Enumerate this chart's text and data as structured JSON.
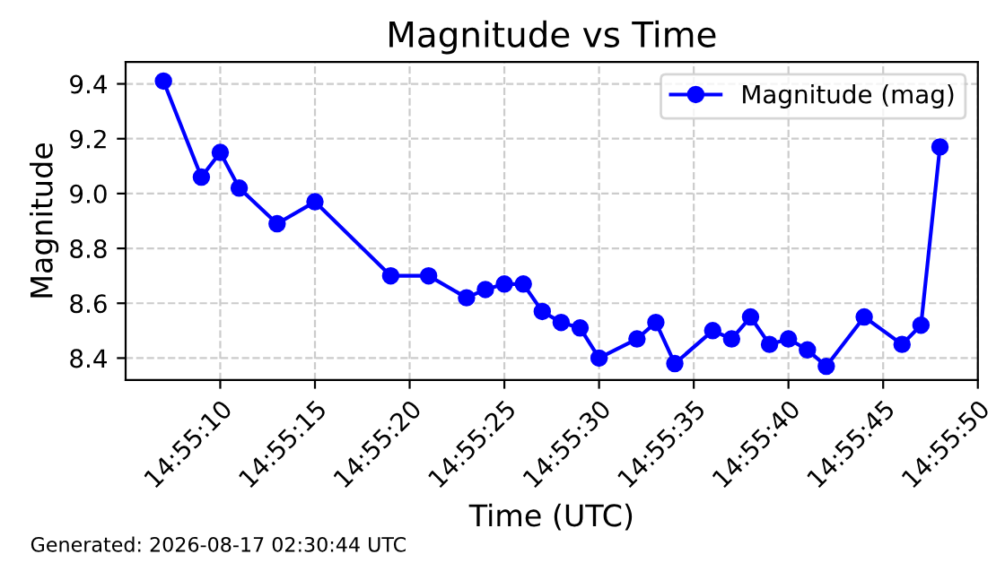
{
  "chart_data": {
    "type": "line",
    "title": "Magnitude vs Time",
    "xlabel": "Time (UTC)",
    "ylabel": "Magnitude",
    "x": [
      14.918611,
      14.919167,
      14.919444,
      14.919722,
      14.920278,
      14.920833,
      14.921944,
      14.9225,
      14.923056,
      14.923333,
      14.923611,
      14.923889,
      14.924167,
      14.924444,
      14.924722,
      14.925,
      14.925556,
      14.925833,
      14.926111,
      14.926667,
      14.926944,
      14.927222,
      14.9275,
      14.927778,
      14.928056,
      14.928333,
      14.928889,
      14.929444,
      14.929722,
      14.93
    ],
    "series": [
      {
        "name": "Magnitude (mag)",
        "color": "#0000ff",
        "values": [
          9.41,
          9.06,
          9.15,
          9.02,
          8.89,
          8.97,
          8.7,
          8.7,
          8.62,
          8.65,
          8.67,
          8.67,
          8.57,
          8.53,
          8.51,
          8.4,
          8.47,
          8.53,
          8.38,
          8.5,
          8.47,
          8.55,
          8.45,
          8.47,
          8.43,
          8.37,
          8.55,
          8.45,
          8.52,
          9.17
        ]
      }
    ],
    "xlim": [
      14.918056,
      14.930556
    ],
    "xticks": [
      {
        "value": 14.919444,
        "label": "14:55:10"
      },
      {
        "value": 14.920833,
        "label": "14:55:15"
      },
      {
        "value": 14.922222,
        "label": "14:55:20"
      },
      {
        "value": 14.923611,
        "label": "14:55:25"
      },
      {
        "value": 14.925,
        "label": "14:55:30"
      },
      {
        "value": 14.926389,
        "label": "14:55:35"
      },
      {
        "value": 14.927778,
        "label": "14:55:40"
      },
      {
        "value": 14.929167,
        "label": "14:55:45"
      },
      {
        "value": 14.930556,
        "label": "14:55:50"
      }
    ],
    "ylim": [
      8.32,
      9.48
    ],
    "yticks": [
      8.4,
      8.6,
      8.8,
      {
        "value": 9,
        "label": "9.0"
      },
      9.2,
      9.4
    ],
    "grid": true,
    "legend": "top right",
    "marker": "circle",
    "line_style": "solid",
    "annotations": [
      "Generated: 2026-08-17 02:30:44 UTC"
    ]
  }
}
